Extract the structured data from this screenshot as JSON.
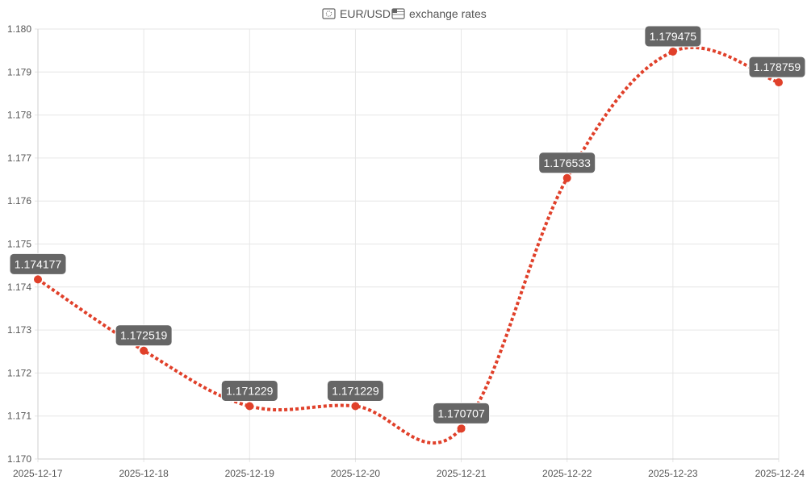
{
  "chart_data": {
    "type": "line",
    "title": "EUR/USD exchange rates",
    "title_icons": [
      "eu-flag-icon",
      "us-flag-icon"
    ],
    "xlabel": "",
    "ylabel": "",
    "x": [
      "2025-12-17",
      "2025-12-18",
      "2025-12-19",
      "2025-12-20",
      "2025-12-21",
      "2025-12-22",
      "2025-12-23",
      "2025-12-24"
    ],
    "series": [
      {
        "values": [
          1.174177,
          1.172519,
          1.171229,
          1.171229,
          1.170707,
          1.176533,
          1.179475,
          1.178759
        ],
        "labels": [
          "1.174177",
          "1.172519",
          "1.171229",
          "1.171229",
          "1.170707",
          "1.176533",
          "1.179475",
          "1.178759"
        ],
        "color": "#e0402a",
        "line_style": "dotted",
        "smooth": true
      }
    ],
    "ylim": [
      1.17,
      1.18
    ],
    "yticks": [
      "1.170",
      "1.171",
      "1.172",
      "1.173",
      "1.174",
      "1.175",
      "1.176",
      "1.177",
      "1.178",
      "1.179",
      "1.180"
    ],
    "grid": true,
    "legend": "none",
    "label_bg_color": "#666666"
  }
}
